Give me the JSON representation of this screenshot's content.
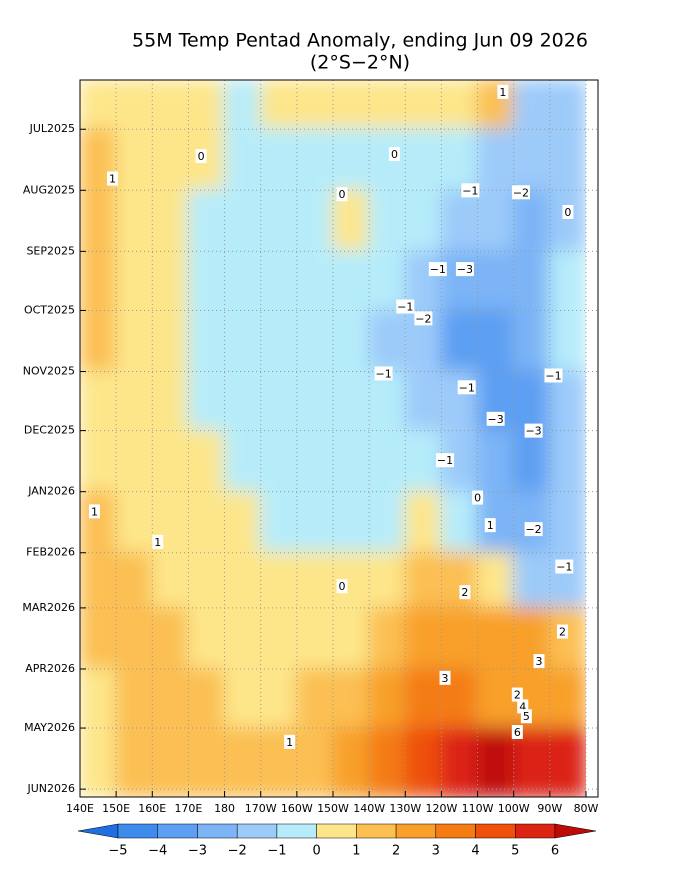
{
  "chart_data": {
    "type": "hovmoller",
    "title": "55M Temp Pentad Anomaly, ending Jun 09 2026",
    "subtitle": "(2°S−2°N)",
    "xlim": [
      140,
      280
    ],
    "xticks": [
      {
        "value": 140,
        "label": "140E"
      },
      {
        "value": 150,
        "label": "150E"
      },
      {
        "value": 160,
        "label": "160E"
      },
      {
        "value": 170,
        "label": "170E"
      },
      {
        "value": 180,
        "label": "180"
      },
      {
        "value": 190,
        "label": "170W"
      },
      {
        "value": 200,
        "label": "160W"
      },
      {
        "value": 210,
        "label": "150W"
      },
      {
        "value": 220,
        "label": "140W"
      },
      {
        "value": 230,
        "label": "130W"
      },
      {
        "value": 240,
        "label": "120W"
      },
      {
        "value": 250,
        "label": "110W"
      },
      {
        "value": 260,
        "label": "100W"
      },
      {
        "value": 270,
        "label": "90W"
      },
      {
        "value": 280,
        "label": "80W"
      }
    ],
    "ylim": [
      5,
      369
    ],
    "yticks": [
      {
        "value": 30,
        "label": "JUL2025"
      },
      {
        "value": 61,
        "label": "AUG2025"
      },
      {
        "value": 92,
        "label": "SEP2025"
      },
      {
        "value": 122,
        "label": "OCT2025"
      },
      {
        "value": 153,
        "label": "NOV2025"
      },
      {
        "value": 183,
        "label": "DEC2025"
      },
      {
        "value": 214,
        "label": "JAN2026"
      },
      {
        "value": 245,
        "label": "FEB2026"
      },
      {
        "value": 273,
        "label": "MAR2026"
      },
      {
        "value": 304,
        "label": "APR2026"
      },
      {
        "value": 334,
        "label": "MAY2026"
      },
      {
        "value": 365,
        "label": "JUN2026"
      }
    ],
    "grid": true,
    "lon_edges": [
      140,
      150,
      160,
      170,
      180,
      190,
      200,
      210,
      220,
      230,
      240,
      250,
      260,
      270,
      280
    ],
    "time_edges": [
      5,
      30,
      61,
      92,
      122,
      153,
      183,
      214,
      245,
      273,
      304,
      334,
      369
    ],
    "values": [
      [
        0.5,
        0.5,
        0.5,
        0.5,
        -0.5,
        0.5,
        0.5,
        0.5,
        0.5,
        0.5,
        0.5,
        1.5,
        -1.5,
        -1.5
      ],
      [
        1,
        0.5,
        0.5,
        0.5,
        -0.5,
        -0.5,
        -0.5,
        -0.5,
        -0.5,
        -0.5,
        -0.5,
        -1.5,
        -1.5,
        -1.5
      ],
      [
        1.5,
        0.5,
        0.5,
        -0.5,
        -0.5,
        -0.5,
        -0.5,
        0.5,
        -0.5,
        -0.5,
        -1.5,
        -1.5,
        -2.5,
        -1.5
      ],
      [
        1.5,
        0.5,
        0.5,
        -0.5,
        -0.5,
        -0.5,
        -0.5,
        -0.5,
        -0.5,
        -1.5,
        -2.5,
        -2.5,
        -2.5,
        -0.5
      ],
      [
        1.5,
        0.5,
        0.5,
        -0.5,
        -0.5,
        -0.5,
        -0.5,
        -0.5,
        -1.5,
        -1.5,
        -3.5,
        -3.5,
        -2.5,
        -0.5
      ],
      [
        0.5,
        0.5,
        0.5,
        -0.5,
        -0.5,
        -0.5,
        -0.5,
        -0.5,
        -0.5,
        -1.5,
        -1.5,
        -3.5,
        -3.5,
        -1.5
      ],
      [
        0.5,
        0.5,
        0.5,
        0.5,
        -0.5,
        -0.5,
        -0.5,
        -0.5,
        -0.5,
        -0.5,
        -1.5,
        -2.5,
        -3.5,
        -1.5
      ],
      [
        1,
        0.5,
        0.5,
        0.5,
        0.5,
        -0.5,
        -0.5,
        -0.5,
        -0.5,
        0.5,
        -0.5,
        -2.5,
        -2.5,
        -1.5
      ],
      [
        1,
        1.5,
        0.5,
        0.5,
        0.5,
        0.5,
        0.5,
        0.5,
        0.5,
        1.5,
        1.5,
        0.5,
        -1.5,
        -1.5
      ],
      [
        1,
        1.5,
        1.5,
        0.5,
        0.5,
        0.5,
        0.5,
        0.5,
        1.5,
        2.5,
        2.5,
        2.5,
        2.5,
        1.5
      ],
      [
        0.5,
        1.5,
        1.5,
        1.5,
        0.5,
        0.5,
        1.5,
        1.5,
        2.5,
        3.5,
        3.5,
        2.5,
        2.5,
        2.5
      ],
      [
        0.5,
        1.5,
        1.5,
        1.5,
        1.5,
        1.5,
        1.5,
        2.5,
        3.5,
        4.5,
        5.5,
        6.5,
        5.5,
        5.5
      ]
    ],
    "levels": [
      {
        "value": -5,
        "label": "−5"
      },
      {
        "value": -4,
        "label": "−4"
      },
      {
        "value": -3,
        "label": "−3"
      },
      {
        "value": -2,
        "label": "−2"
      },
      {
        "value": -1,
        "label": "−1"
      },
      0,
      1,
      2,
      3,
      4,
      5,
      6
    ],
    "colors": [
      "#1f6fe2",
      "#3f8beb",
      "#5d9ff2",
      "#7cb4f6",
      "#9ccbfa",
      "#b6ecfa",
      "#fde68a",
      "#fbbf52",
      "#f8a02a",
      "#f47c12",
      "#ef500c",
      "#dc2412",
      "#bf0a0a"
    ],
    "contour_labels": [
      {
        "label": "1",
        "lon": 257,
        "time": 11
      },
      {
        "label": "0",
        "lon": 173.5,
        "time": 43.6
      },
      {
        "label": "0",
        "lon": 227,
        "time": 42.6
      },
      {
        "label": "1",
        "lon": 149,
        "time": 55
      },
      {
        "label": "0",
        "lon": 212.5,
        "time": 63
      },
      {
        "label": "−1",
        "lon": 248,
        "time": 61
      },
      {
        "label": "−2",
        "lon": 262,
        "time": 62
      },
      {
        "label": "0",
        "lon": 275,
        "time": 72
      },
      {
        "label": "−1",
        "lon": 239,
        "time": 101
      },
      {
        "label": "−3",
        "lon": 246.5,
        "time": 101
      },
      {
        "label": "−1",
        "lon": 230,
        "time": 120
      },
      {
        "label": "−2",
        "lon": 235,
        "time": 126
      },
      {
        "label": "−1",
        "lon": 224,
        "time": 154
      },
      {
        "label": "−1",
        "lon": 247,
        "time": 161
      },
      {
        "label": "−1",
        "lon": 271,
        "time": 155
      },
      {
        "label": "−3",
        "lon": 255,
        "time": 177
      },
      {
        "label": "−3",
        "lon": 265.5,
        "time": 183
      },
      {
        "label": "−1",
        "lon": 241,
        "time": 198
      },
      {
        "label": "0",
        "lon": 250,
        "time": 217
      },
      {
        "label": "1",
        "lon": 144,
        "time": 224
      },
      {
        "label": "1",
        "lon": 253.5,
        "time": 231
      },
      {
        "label": "−2",
        "lon": 265.5,
        "time": 233
      },
      {
        "label": "1",
        "lon": 161.5,
        "time": 239.5
      },
      {
        "label": "−1",
        "lon": 274,
        "time": 252
      },
      {
        "label": "0",
        "lon": 212.5,
        "time": 262
      },
      {
        "label": "2",
        "lon": 246.5,
        "time": 265
      },
      {
        "label": "2",
        "lon": 273.5,
        "time": 285
      },
      {
        "label": "3",
        "lon": 267,
        "time": 300
      },
      {
        "label": "3",
        "lon": 241,
        "time": 308.5
      },
      {
        "label": "2",
        "lon": 261,
        "time": 317
      },
      {
        "label": "4",
        "lon": 262.5,
        "time": 323
      },
      {
        "label": "5",
        "lon": 263.5,
        "time": 328
      },
      {
        "label": "6",
        "lon": 261,
        "time": 336
      },
      {
        "label": "1",
        "lon": 198,
        "time": 341
      }
    ]
  }
}
